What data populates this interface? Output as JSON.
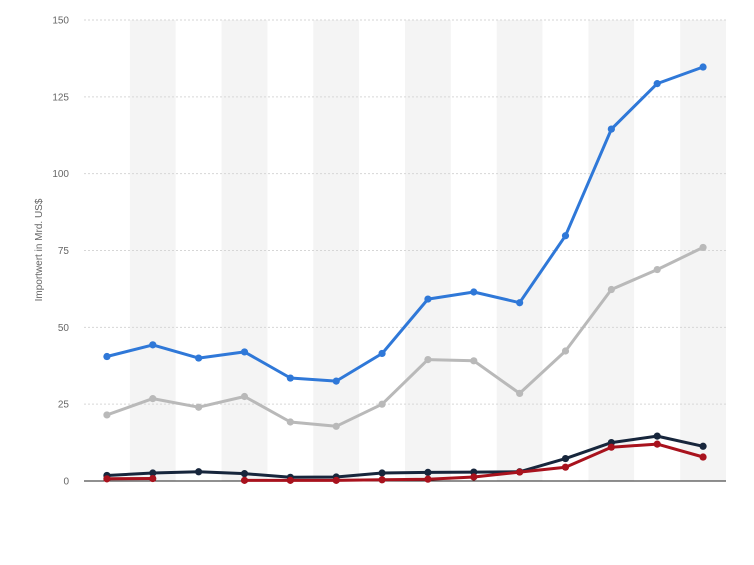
{
  "chart_data": {
    "type": "line",
    "ylabel": "Importwert in Mrd. US$",
    "ylim": [
      0,
      150
    ],
    "yticks": [
      "0",
      "25",
      "50",
      "75",
      "100",
      "125",
      "150"
    ],
    "grid": true,
    "x": [
      1,
      2,
      3,
      4,
      5,
      6,
      7,
      8,
      9,
      10,
      11,
      12,
      13,
      14
    ],
    "series": [
      {
        "color": "#2f78d8",
        "values": [
          40.5,
          44.3,
          40,
          42,
          33.5,
          32.5,
          41.5,
          59.2,
          61.5,
          58,
          79.8,
          114.5,
          129.3,
          134.7
        ]
      },
      {
        "color": "#b9b9b9",
        "values": [
          21.5,
          26.8,
          24,
          27.5,
          19.2,
          17.8,
          25,
          39.5,
          39.1,
          28.5,
          42.3,
          62.3,
          68.8,
          76
        ]
      },
      {
        "color": "#17263c",
        "values": [
          1.8,
          2.6,
          3,
          2.4,
          1.2,
          1.3,
          2.6,
          2.8,
          2.9,
          3,
          7.3,
          12.5,
          14.6,
          11.3
        ]
      },
      {
        "color": "#a8121d",
        "values": [
          0.7,
          0.8,
          null,
          0.2,
          0.2,
          0.2,
          0.4,
          0.6,
          1.3,
          2.9,
          4.5,
          11,
          12,
          7.8
        ]
      }
    ]
  }
}
